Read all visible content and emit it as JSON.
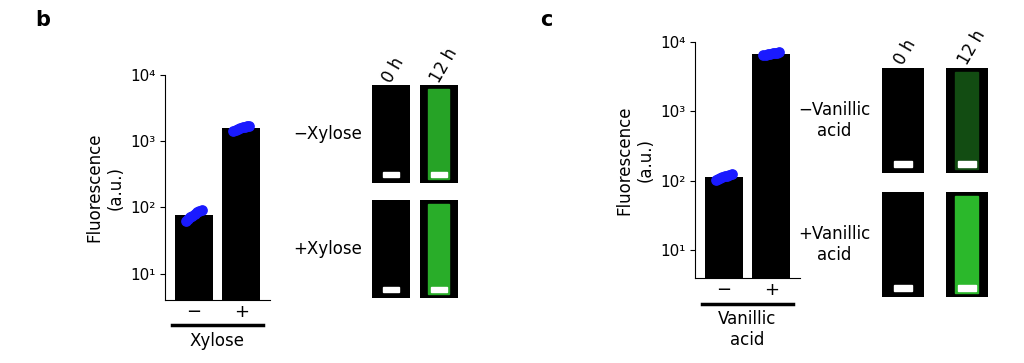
{
  "chart_data": [
    {
      "type": "bar",
      "title": "b",
      "categories": [
        "−",
        "+"
      ],
      "values": [
        78,
        1600
      ],
      "color": "#000000",
      "replicates": {
        "color": "#1a1aff",
        "values": [
          [
            62,
            68,
            72,
            75,
            80,
            84,
            88,
            93
          ],
          [
            1450,
            1500,
            1550,
            1580,
            1620,
            1650,
            1700,
            1720
          ]
        ]
      },
      "xlabel": "Xylose",
      "ylabel": "Fluorescence\n(a.u.)",
      "log": "y",
      "ylim": [
        4,
        10000
      ],
      "yticks": [
        {
          "value": 10,
          "label": "10¹"
        },
        {
          "value": 100,
          "label": "10²"
        },
        {
          "value": 1000,
          "label": "10³"
        },
        {
          "value": 10000,
          "label": "10⁴"
        }
      ]
    },
    {
      "type": "bar",
      "title": "c",
      "categories": [
        "−",
        "+"
      ],
      "values": [
        115,
        6800
      ],
      "color": "#000000",
      "replicates": {
        "color": "#1a1aff",
        "values": [
          [
            102,
            106,
            110,
            113,
            116,
            119,
            122,
            126
          ],
          [
            6400,
            6550,
            6650,
            6750,
            6850,
            6950,
            7050,
            7150
          ]
        ]
      },
      "xlabel": "Vanillic\nacid",
      "ylabel": "Fluorescence\n(a.u.)",
      "log": "y",
      "ylim": [
        4,
        10000
      ],
      "yticks": [
        {
          "value": 10,
          "label": "10¹"
        },
        {
          "value": 100,
          "label": "10²"
        },
        {
          "value": 1000,
          "label": "10³"
        },
        {
          "value": 10000,
          "label": "10⁴"
        }
      ]
    }
  ],
  "micrographs": [
    {
      "columns": [
        "0 h",
        "12 h"
      ],
      "rows": [
        "−Xylose",
        "+Xylose"
      ]
    },
    {
      "columns": [
        "0 h",
        "12 h"
      ],
      "rows": [
        "−Vanillic\nacid",
        "+Vanillic\nacid"
      ]
    }
  ]
}
